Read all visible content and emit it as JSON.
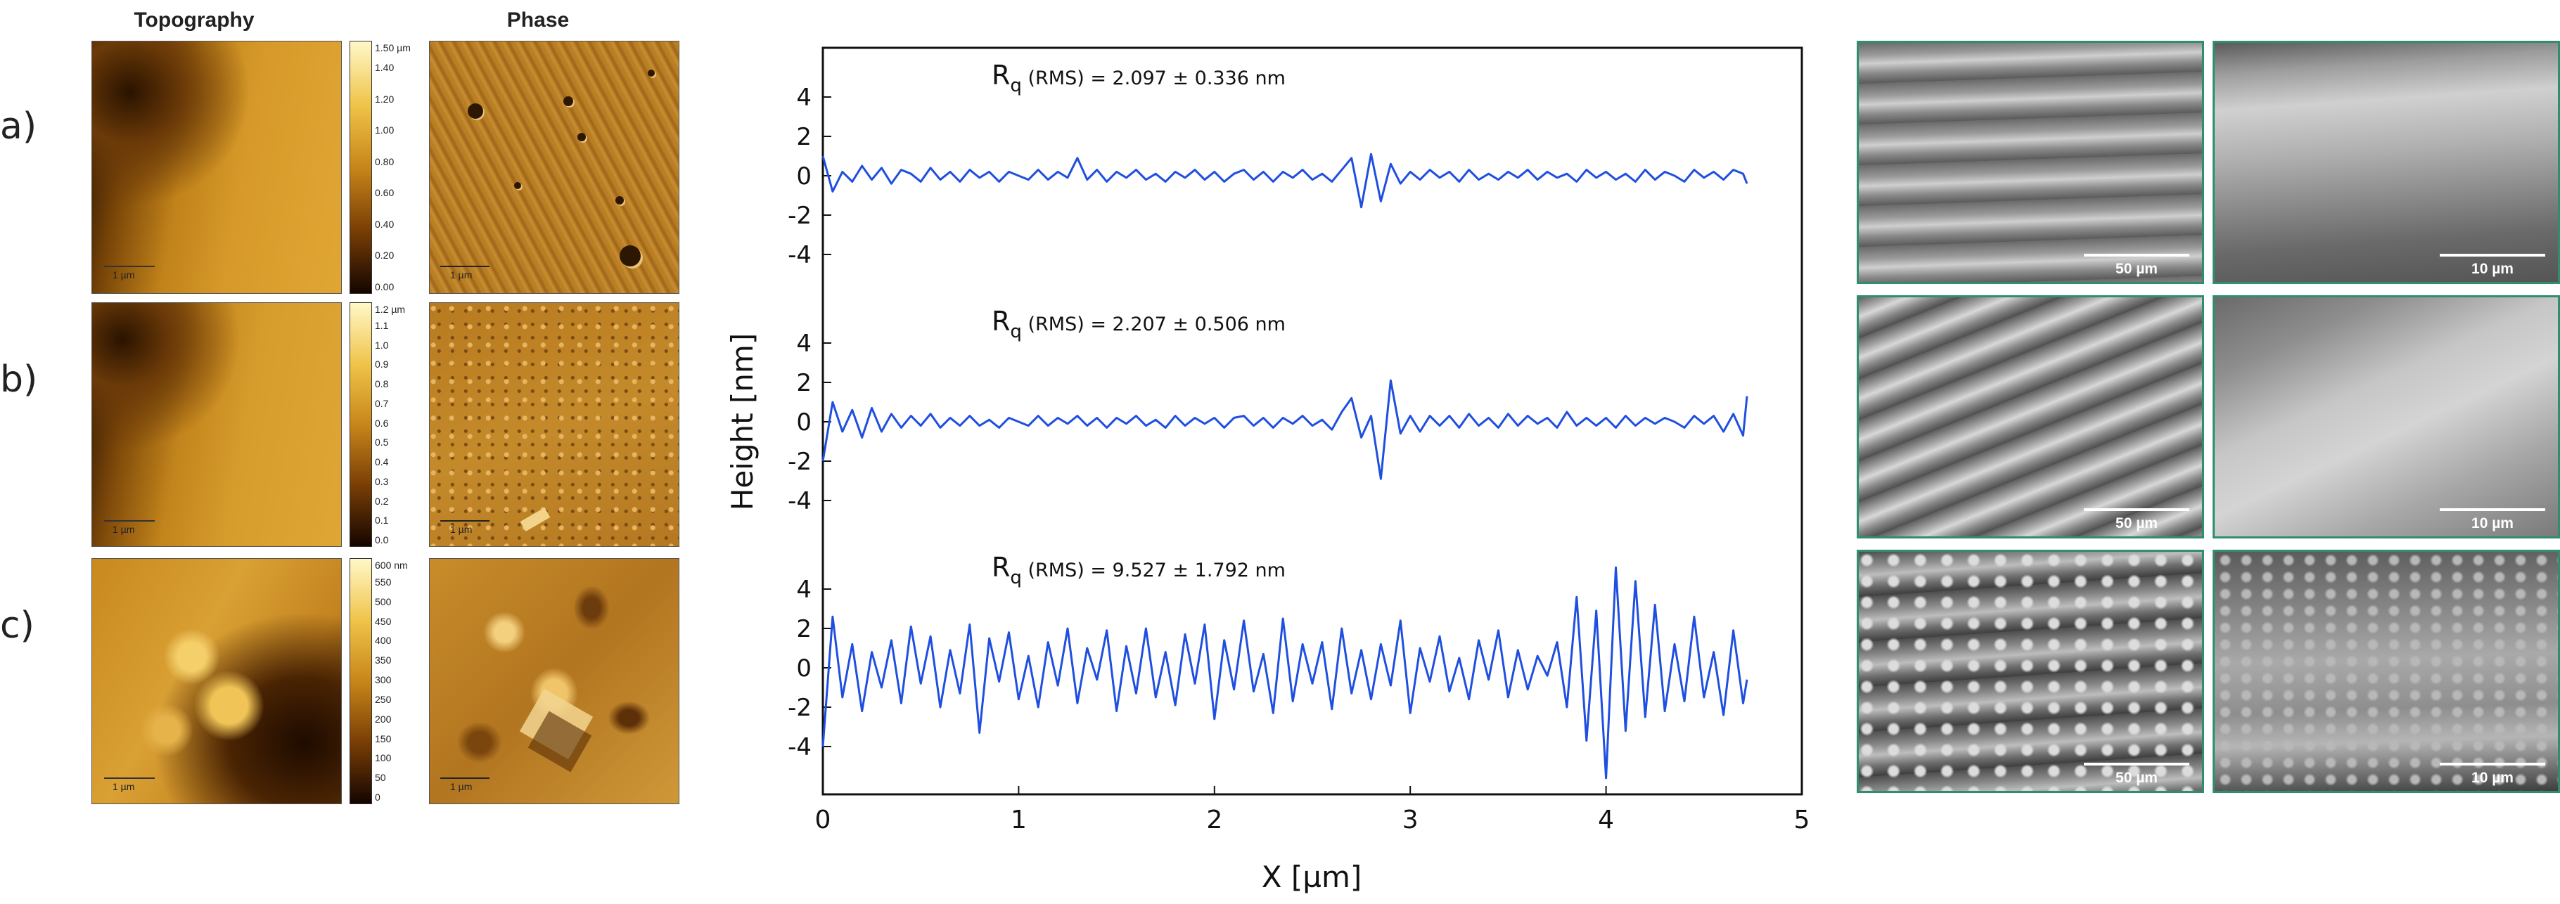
{
  "figure": {
    "col_headers": {
      "topography": "Topography",
      "phase": "Phase"
    },
    "row_labels": [
      "a)",
      "b)",
      "c)"
    ],
    "afm_rows": [
      {
        "id": "a",
        "colorbar_unit": "1.50 µm",
        "colorbar_ticks": [
          "1.40",
          "1.20",
          "1.00",
          "0.80",
          "0.60",
          "0.40",
          "0.20",
          "0.00"
        ],
        "topo_scale": "1 µm",
        "phase_scale": "1 µm"
      },
      {
        "id": "b",
        "colorbar_unit": "1.2 µm",
        "colorbar_ticks": [
          "1.1",
          "1.0",
          "0.9",
          "0.8",
          "0.7",
          "0.6",
          "0.5",
          "0.4",
          "0.3",
          "0.2",
          "0.1",
          "0.0"
        ],
        "topo_scale": "1 µm",
        "phase_scale": "1 µm"
      },
      {
        "id": "c",
        "colorbar_unit": "600 nm",
        "colorbar_ticks": [
          "550",
          "500",
          "450",
          "400",
          "350",
          "300",
          "250",
          "200",
          "150",
          "100",
          "50",
          "0"
        ],
        "topo_scale": "1 µm",
        "phase_scale": "1 µm"
      }
    ],
    "sem_rows": [
      {
        "left_scale": "50 µm",
        "right_scale": "10 µm"
      },
      {
        "left_scale": "50 µm",
        "right_scale": "10 µm"
      },
      {
        "left_scale": "50 µm",
        "right_scale": "10 µm"
      }
    ],
    "colors": {
      "line": "#1f4fe0",
      "sem_border": "#2f8f6a"
    }
  },
  "chart_data": {
    "type": "line",
    "xlabel": "X [µm]",
    "ylabel": "Height [nm]",
    "xlim": [
      0,
      5
    ],
    "ylim": [
      -5,
      5
    ],
    "xticks": [
      "0",
      "1",
      "2",
      "3",
      "4",
      "5"
    ],
    "yticks": [
      "4",
      "2",
      "0",
      "-2",
      "-4"
    ],
    "panels": [
      {
        "name": "a",
        "annotation_R": "R",
        "annotation_sub": "q",
        "annotation_text": "(RMS) = 2.097 ± 0.336 nm",
        "x": [
          0.0,
          0.05,
          0.1,
          0.15,
          0.2,
          0.25,
          0.3,
          0.35,
          0.4,
          0.45,
          0.5,
          0.55,
          0.6,
          0.65,
          0.7,
          0.75,
          0.8,
          0.85,
          0.9,
          0.95,
          1.0,
          1.05,
          1.1,
          1.15,
          1.2,
          1.25,
          1.3,
          1.35,
          1.4,
          1.45,
          1.5,
          1.55,
          1.6,
          1.65,
          1.7,
          1.75,
          1.8,
          1.85,
          1.9,
          1.95,
          2.0,
          2.05,
          2.1,
          2.15,
          2.2,
          2.25,
          2.3,
          2.35,
          2.4,
          2.45,
          2.5,
          2.55,
          2.6,
          2.65,
          2.7,
          2.75,
          2.8,
          2.85,
          2.9,
          2.95,
          3.0,
          3.05,
          3.1,
          3.15,
          3.2,
          3.25,
          3.3,
          3.35,
          3.4,
          3.45,
          3.5,
          3.55,
          3.6,
          3.65,
          3.7,
          3.75,
          3.8,
          3.85,
          3.9,
          3.95,
          4.0,
          4.05,
          4.1,
          4.15,
          4.2,
          4.25,
          4.3,
          4.35,
          4.4,
          4.45,
          4.5,
          4.55,
          4.6,
          4.65,
          4.7,
          4.72
        ],
        "y": [
          1.0,
          -0.8,
          0.2,
          -0.3,
          0.5,
          -0.2,
          0.4,
          -0.4,
          0.3,
          0.1,
          -0.3,
          0.4,
          -0.2,
          0.2,
          -0.3,
          0.3,
          -0.1,
          0.2,
          -0.3,
          0.2,
          0.0,
          -0.2,
          0.3,
          -0.2,
          0.2,
          -0.1,
          0.9,
          -0.2,
          0.3,
          -0.3,
          0.2,
          -0.1,
          0.3,
          -0.2,
          0.1,
          -0.3,
          0.2,
          -0.1,
          0.3,
          -0.2,
          0.2,
          -0.3,
          0.1,
          0.3,
          -0.2,
          0.2,
          -0.3,
          0.2,
          -0.1,
          0.3,
          -0.2,
          0.1,
          -0.3,
          0.3,
          0.9,
          -1.6,
          1.1,
          -1.3,
          0.6,
          -0.4,
          0.2,
          -0.2,
          0.3,
          -0.1,
          0.2,
          -0.3,
          0.3,
          -0.2,
          0.1,
          -0.2,
          0.2,
          -0.1,
          0.3,
          -0.2,
          0.2,
          -0.1,
          0.1,
          -0.3,
          0.3,
          -0.1,
          0.2,
          -0.2,
          0.1,
          -0.3,
          0.3,
          -0.2,
          0.2,
          0.0,
          -0.3,
          0.3,
          -0.1,
          0.2,
          -0.2,
          0.3,
          0.1,
          -0.4
        ]
      },
      {
        "name": "b",
        "annotation_R": "R",
        "annotation_sub": "q",
        "annotation_text": "(RMS) = 2.207 ± 0.506 nm",
        "x": [
          0.0,
          0.05,
          0.1,
          0.15,
          0.2,
          0.25,
          0.3,
          0.35,
          0.4,
          0.45,
          0.5,
          0.55,
          0.6,
          0.65,
          0.7,
          0.75,
          0.8,
          0.85,
          0.9,
          0.95,
          1.0,
          1.05,
          1.1,
          1.15,
          1.2,
          1.25,
          1.3,
          1.35,
          1.4,
          1.45,
          1.5,
          1.55,
          1.6,
          1.65,
          1.7,
          1.75,
          1.8,
          1.85,
          1.9,
          1.95,
          2.0,
          2.05,
          2.1,
          2.15,
          2.2,
          2.25,
          2.3,
          2.35,
          2.4,
          2.45,
          2.5,
          2.55,
          2.6,
          2.65,
          2.7,
          2.75,
          2.8,
          2.85,
          2.9,
          2.95,
          3.0,
          3.05,
          3.1,
          3.15,
          3.2,
          3.25,
          3.3,
          3.35,
          3.4,
          3.45,
          3.5,
          3.55,
          3.6,
          3.65,
          3.7,
          3.75,
          3.8,
          3.85,
          3.9,
          3.95,
          4.0,
          4.05,
          4.1,
          4.15,
          4.2,
          4.25,
          4.3,
          4.35,
          4.4,
          4.45,
          4.5,
          4.55,
          4.6,
          4.65,
          4.7,
          4.72
        ],
        "y": [
          -2.0,
          1.0,
          -0.5,
          0.6,
          -0.8,
          0.7,
          -0.5,
          0.4,
          -0.3,
          0.3,
          -0.2,
          0.4,
          -0.3,
          0.2,
          -0.2,
          0.3,
          -0.2,
          0.1,
          -0.3,
          0.2,
          0.0,
          -0.2,
          0.3,
          -0.2,
          0.2,
          -0.1,
          0.3,
          -0.2,
          0.2,
          -0.3,
          0.2,
          -0.1,
          0.3,
          -0.2,
          0.1,
          -0.3,
          0.3,
          -0.2,
          0.2,
          -0.1,
          0.2,
          -0.3,
          0.2,
          0.3,
          -0.2,
          0.2,
          -0.3,
          0.2,
          -0.1,
          0.3,
          -0.2,
          0.1,
          -0.4,
          0.5,
          1.2,
          -0.8,
          0.3,
          -2.9,
          2.1,
          -0.6,
          0.3,
          -0.5,
          0.3,
          -0.2,
          0.3,
          -0.3,
          0.4,
          -0.2,
          0.2,
          -0.3,
          0.4,
          -0.2,
          0.3,
          -0.1,
          0.2,
          -0.3,
          0.5,
          -0.2,
          0.2,
          -0.2,
          0.2,
          -0.3,
          0.3,
          -0.2,
          0.2,
          -0.1,
          0.2,
          0.0,
          -0.3,
          0.3,
          -0.1,
          0.3,
          -0.5,
          0.4,
          -0.7,
          1.3
        ]
      },
      {
        "name": "c",
        "annotation_R": "R",
        "annotation_sub": "q",
        "annotation_text": "(RMS) = 9.527 ± 1.792 nm",
        "x": [
          0.0,
          0.05,
          0.1,
          0.15,
          0.2,
          0.25,
          0.3,
          0.35,
          0.4,
          0.45,
          0.5,
          0.55,
          0.6,
          0.65,
          0.7,
          0.75,
          0.8,
          0.85,
          0.9,
          0.95,
          1.0,
          1.05,
          1.1,
          1.15,
          1.2,
          1.25,
          1.3,
          1.35,
          1.4,
          1.45,
          1.5,
          1.55,
          1.6,
          1.65,
          1.7,
          1.75,
          1.8,
          1.85,
          1.9,
          1.95,
          2.0,
          2.05,
          2.1,
          2.15,
          2.2,
          2.25,
          2.3,
          2.35,
          2.4,
          2.45,
          2.5,
          2.55,
          2.6,
          2.65,
          2.7,
          2.75,
          2.8,
          2.85,
          2.9,
          2.95,
          3.0,
          3.05,
          3.1,
          3.15,
          3.2,
          3.25,
          3.3,
          3.35,
          3.4,
          3.45,
          3.5,
          3.55,
          3.6,
          3.65,
          3.7,
          3.75,
          3.8,
          3.85,
          3.9,
          3.95,
          4.0,
          4.05,
          4.1,
          4.15,
          4.2,
          4.25,
          4.3,
          4.35,
          4.4,
          4.45,
          4.5,
          4.55,
          4.6,
          4.65,
          4.7,
          4.72
        ],
        "y": [
          -4.0,
          2.6,
          -1.5,
          1.2,
          -2.2,
          0.8,
          -1.0,
          1.4,
          -1.8,
          2.1,
          -0.8,
          1.6,
          -2.0,
          0.9,
          -1.3,
          2.2,
          -3.3,
          1.5,
          -0.7,
          1.8,
          -1.6,
          0.6,
          -2.0,
          1.3,
          -0.9,
          2.0,
          -1.8,
          1.0,
          -0.6,
          1.9,
          -2.2,
          1.1,
          -1.3,
          2.0,
          -1.5,
          0.8,
          -1.9,
          1.7,
          -0.8,
          2.2,
          -2.6,
          1.4,
          -1.1,
          2.4,
          -1.2,
          0.7,
          -2.3,
          2.5,
          -1.7,
          1.2,
          -0.8,
          1.3,
          -2.1,
          2.0,
          -1.3,
          0.9,
          -1.6,
          1.2,
          -0.9,
          2.4,
          -2.3,
          1.0,
          -0.7,
          1.6,
          -1.2,
          0.5,
          -1.6,
          1.4,
          -0.6,
          1.9,
          -1.5,
          0.9,
          -1.1,
          0.6,
          -0.4,
          1.3,
          -2.0,
          3.6,
          -3.7,
          2.9,
          -5.6,
          5.1,
          -3.2,
          4.4,
          -2.5,
          3.2,
          -2.2,
          1.2,
          -1.7,
          2.6,
          -1.5,
          0.8,
          -2.4,
          1.9,
          -1.8,
          -0.6
        ]
      }
    ]
  }
}
